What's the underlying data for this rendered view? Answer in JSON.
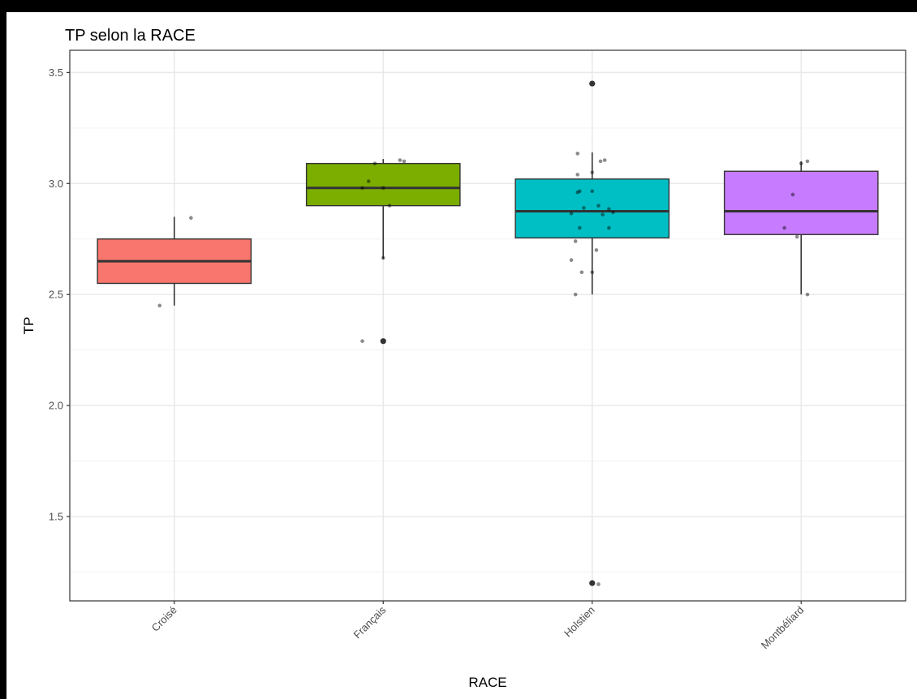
{
  "chart_data": {
    "type": "boxplot",
    "title": "TP selon la RACE",
    "xlabel": "RACE",
    "ylabel": "TP",
    "ylim": [
      1.12,
      3.6
    ],
    "y_ticks": [
      1.5,
      2.0,
      2.5,
      3.0,
      3.5
    ],
    "y_tick_labels": [
      "1.5",
      "2.0",
      "2.5",
      "3.0",
      "3.5"
    ],
    "x_tick_rotation_deg": 45,
    "grid": true,
    "legend": "none",
    "categories": [
      "Croisé",
      "Français",
      "Holstien",
      "Montbéliard"
    ],
    "colors": [
      "#F8766D",
      "#7CAE00",
      "#00BFC4",
      "#C77CFF"
    ],
    "boxes": [
      {
        "category": "Croisé",
        "q1": 2.55,
        "median": 2.65,
        "q3": 2.75,
        "whisker_low": 2.45,
        "whisker_high": 2.85,
        "outliers": []
      },
      {
        "category": "Français",
        "q1": 2.9,
        "median": 2.98,
        "q3": 3.09,
        "whisker_low": 2.66,
        "whisker_high": 3.11,
        "outliers": [
          2.29
        ]
      },
      {
        "category": "Holstien",
        "q1": 2.755,
        "median": 2.875,
        "q3": 3.02,
        "whisker_low": 2.5,
        "whisker_high": 3.14,
        "outliers": [
          3.45,
          1.2
        ]
      },
      {
        "category": "Montbéliard",
        "q1": 2.77,
        "median": 2.875,
        "q3": 3.055,
        "whisker_low": 2.5,
        "whisker_high": 3.1,
        "outliers": []
      }
    ],
    "jitter_points": [
      {
        "category": "Croisé",
        "offset": -0.07,
        "y": 2.45
      },
      {
        "category": "Croisé",
        "offset": 0.08,
        "y": 2.845
      },
      {
        "category": "Français",
        "offset": -0.1,
        "y": 2.29
      },
      {
        "category": "Français",
        "offset": 0.0,
        "y": 2.665
      },
      {
        "category": "Français",
        "offset": 0.03,
        "y": 2.9
      },
      {
        "category": "Français",
        "offset": -0.1,
        "y": 2.98
      },
      {
        "category": "Français",
        "offset": 0.0,
        "y": 2.98
      },
      {
        "category": "Français",
        "offset": -0.07,
        "y": 3.01
      },
      {
        "category": "Français",
        "offset": -0.04,
        "y": 3.09
      },
      {
        "category": "Français",
        "offset": 0.08,
        "y": 3.105
      },
      {
        "category": "Français",
        "offset": 0.1,
        "y": 3.1
      },
      {
        "category": "Holstien",
        "offset": -0.08,
        "y": 2.5
      },
      {
        "category": "Holstien",
        "offset": -0.1,
        "y": 2.655
      },
      {
        "category": "Holstien",
        "offset": -0.05,
        "y": 2.6
      },
      {
        "category": "Holstien",
        "offset": 0.0,
        "y": 2.6
      },
      {
        "category": "Holstien",
        "offset": 0.02,
        "y": 2.7
      },
      {
        "category": "Holstien",
        "offset": -0.08,
        "y": 2.74
      },
      {
        "category": "Holstien",
        "offset": -0.06,
        "y": 2.8
      },
      {
        "category": "Holstien",
        "offset": 0.08,
        "y": 2.8
      },
      {
        "category": "Holstien",
        "offset": -0.1,
        "y": 2.865
      },
      {
        "category": "Holstien",
        "offset": 0.05,
        "y": 2.86
      },
      {
        "category": "Holstien",
        "offset": 0.1,
        "y": 2.87
      },
      {
        "category": "Holstien",
        "offset": 0.08,
        "y": 2.885
      },
      {
        "category": "Holstien",
        "offset": -0.04,
        "y": 2.89
      },
      {
        "category": "Holstien",
        "offset": 0.03,
        "y": 2.9
      },
      {
        "category": "Holstien",
        "offset": -0.07,
        "y": 2.96
      },
      {
        "category": "Holstien",
        "offset": -0.06,
        "y": 2.965
      },
      {
        "category": "Holstien",
        "offset": 0.0,
        "y": 2.965
      },
      {
        "category": "Holstien",
        "offset": -0.07,
        "y": 3.04
      },
      {
        "category": "Holstien",
        "offset": 0.0,
        "y": 3.05
      },
      {
        "category": "Holstien",
        "offset": 0.04,
        "y": 3.1
      },
      {
        "category": "Holstien",
        "offset": 0.06,
        "y": 3.105
      },
      {
        "category": "Holstien",
        "offset": -0.07,
        "y": 3.135
      },
      {
        "category": "Holstien",
        "offset": 0.03,
        "y": 1.195
      },
      {
        "category": "Montbéliard",
        "offset": 0.03,
        "y": 2.5
      },
      {
        "category": "Montbéliard",
        "offset": -0.02,
        "y": 2.76
      },
      {
        "category": "Montbéliard",
        "offset": -0.08,
        "y": 2.8
      },
      {
        "category": "Montbéliard",
        "offset": -0.04,
        "y": 2.95
      },
      {
        "category": "Montbéliard",
        "offset": 0.0,
        "y": 3.09
      },
      {
        "category": "Montbéliard",
        "offset": 0.03,
        "y": 3.1
      }
    ]
  }
}
